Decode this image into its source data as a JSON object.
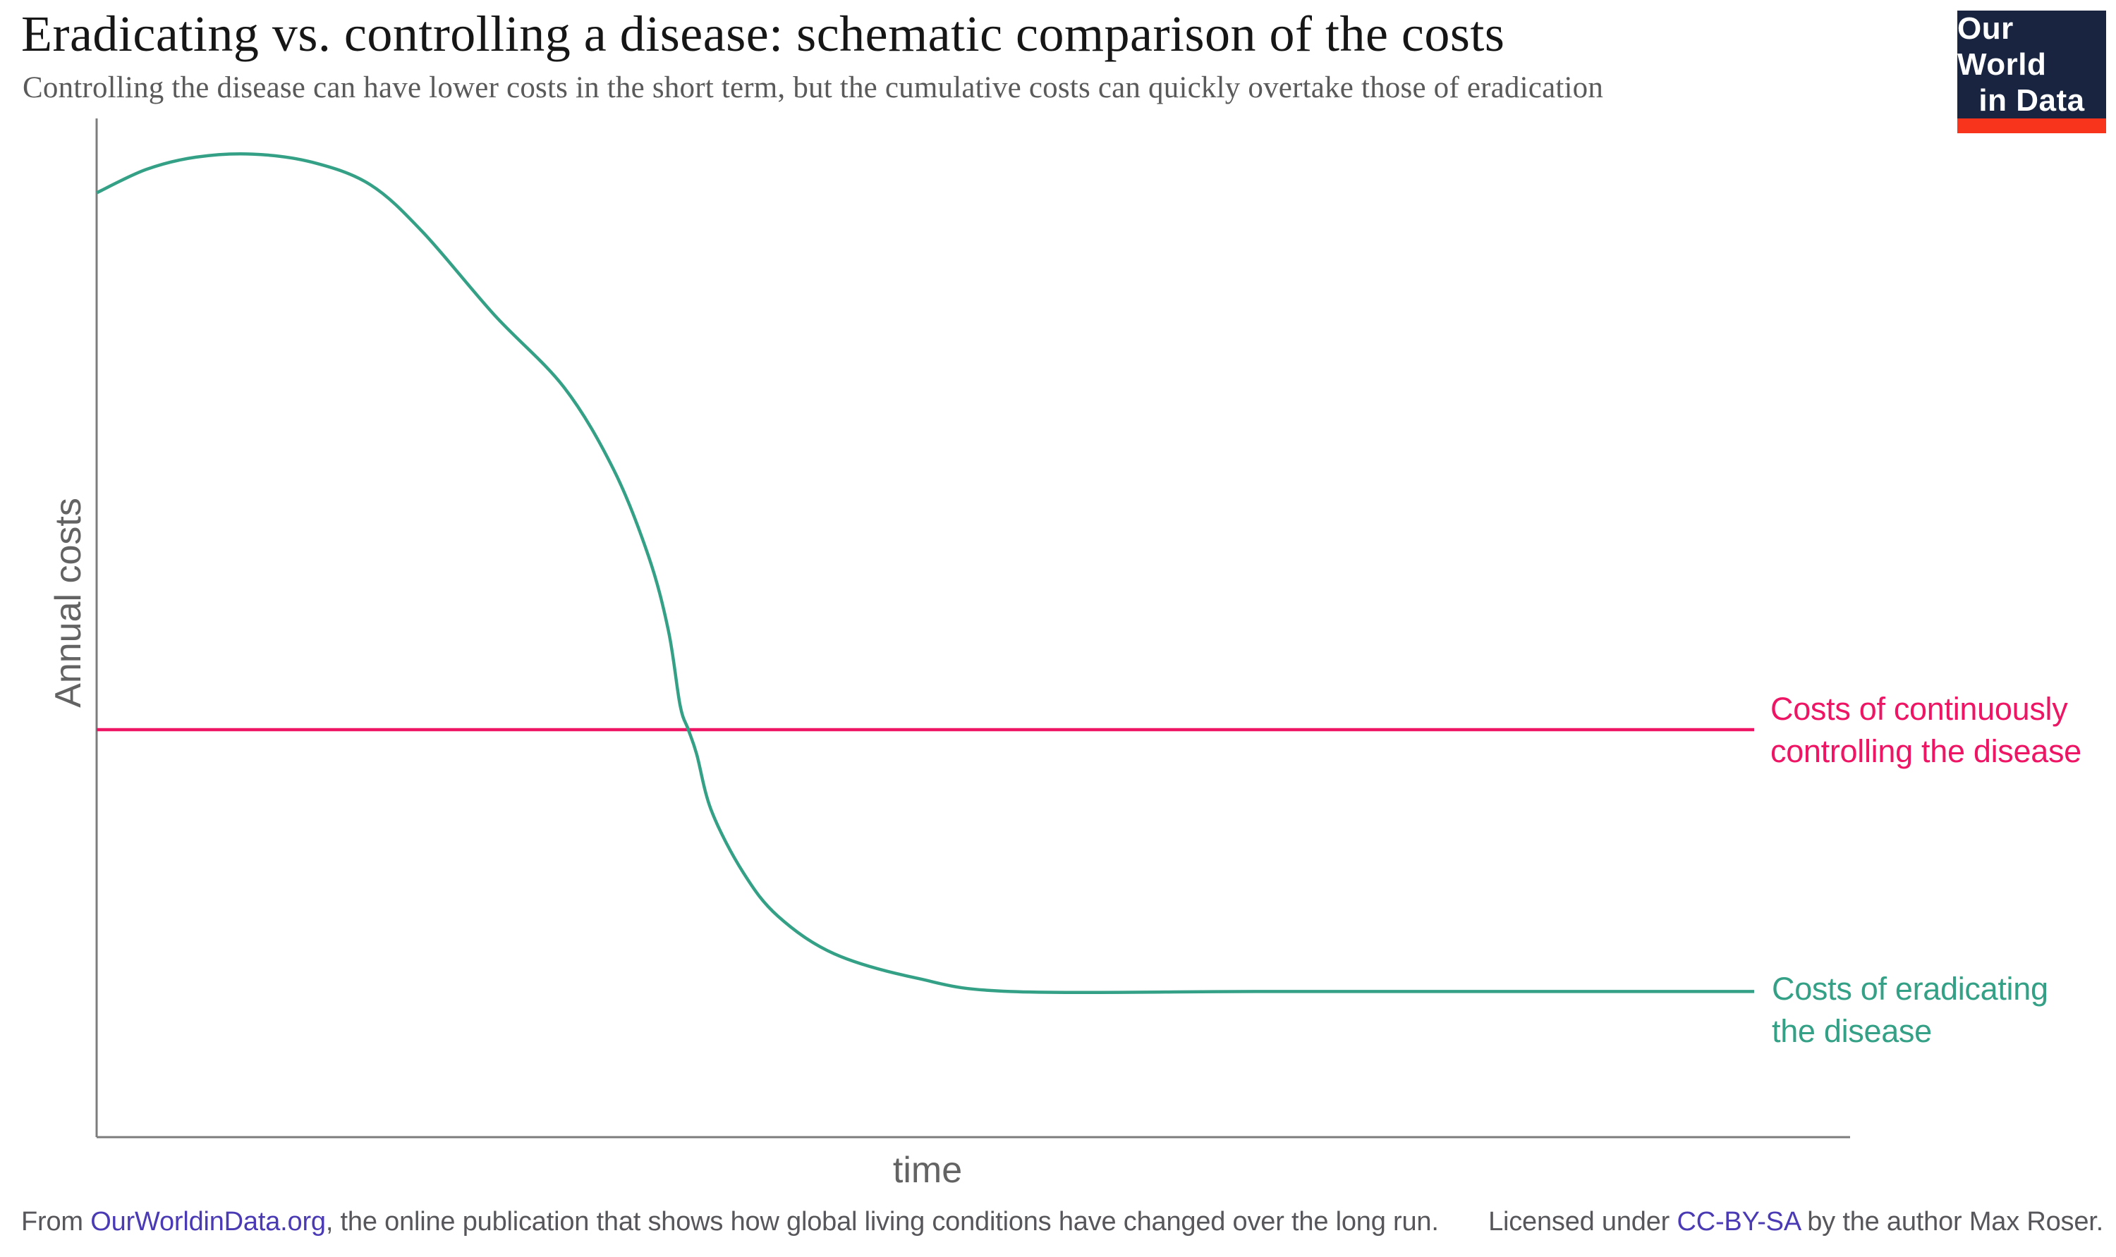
{
  "header": {
    "title": "Eradicating vs. controlling a disease: schematic comparison of the costs",
    "subtitle": "Controlling the disease can have lower costs in the short term, but the cumulative costs can quickly overtake those of eradication"
  },
  "logo": {
    "line1": "Our World",
    "line2": "in Data",
    "bg_color": "#182440",
    "bar_color": "#f9341c"
  },
  "chart_data": {
    "type": "line",
    "title": "Eradicating vs. controlling a disease: schematic comparison of the costs",
    "xlabel": "time",
    "ylabel": "Annual costs",
    "axes_unitless": true,
    "grid": false,
    "legend_position": "right-annotations",
    "xlim": [
      0,
      1
    ],
    "ylim": [
      0,
      1
    ],
    "series": [
      {
        "name": "Costs of continuously controlling the disease",
        "color": "#ef1565",
        "x": [
          0.0,
          1.0
        ],
        "y": [
          0.4,
          0.4
        ]
      },
      {
        "name": "Costs of eradicating the disease",
        "color": "#34a186",
        "x": [
          0.0,
          0.03,
          0.06,
          0.094,
          0.13,
          0.165,
          0.197,
          0.24,
          0.282,
          0.312,
          0.333,
          0.345,
          0.352,
          0.357,
          0.362,
          0.371,
          0.39,
          0.411,
          0.445,
          0.495,
          0.551,
          0.7,
          0.85,
          1.0
        ],
        "y": [
          0.927,
          0.95,
          0.962,
          0.965,
          0.957,
          0.935,
          0.888,
          0.807,
          0.736,
          0.655,
          0.57,
          0.497,
          0.424,
          0.4,
          0.376,
          0.32,
          0.26,
          0.217,
          0.18,
          0.156,
          0.143,
          0.143,
          0.143,
          0.143
        ]
      }
    ],
    "annotations": {
      "control": {
        "line1": "Costs of continuously",
        "line2": "controlling the disease",
        "color": "#ef1565"
      },
      "eradicate": {
        "line1": "Costs of eradicating",
        "line2": "the disease",
        "color": "#34a186"
      }
    },
    "axis_color": "#7c7c7c"
  },
  "footer": {
    "left": {
      "prefix": "From ",
      "link": "OurWorldinData.org",
      "suffix": ", the online publication that shows how global living conditions have changed over the long run."
    },
    "right": {
      "prefix": "Licensed under ",
      "link": "CC-BY-SA",
      "suffix": " by the author Max Roser."
    },
    "link_color": "#4a3bb5"
  }
}
